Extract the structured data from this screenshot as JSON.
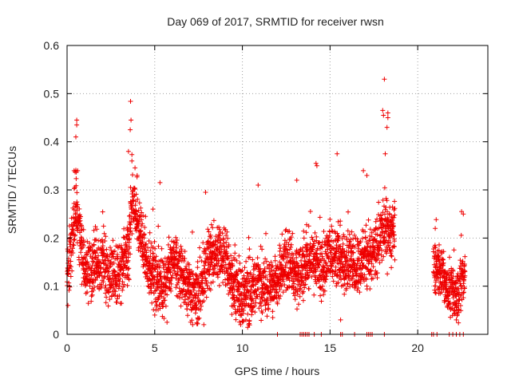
{
  "chart_data": {
    "type": "scatter",
    "title": "Day 069 of 2017, SRMTID for receiver rwsn",
    "xlabel": "GPS time / hours",
    "ylabel": "SRMTID / TECUs",
    "xlim": [
      0,
      24
    ],
    "ylim": [
      0,
      0.6
    ],
    "x_ticks": [
      0,
      5,
      10,
      15,
      20
    ],
    "y_ticks": [
      0,
      0.1,
      0.2,
      0.3,
      0.4,
      0.5,
      0.6
    ],
    "x_tick_labels": [
      "0",
      "5",
      "10",
      "15",
      "20"
    ],
    "y_tick_labels": [
      "0",
      "0.1",
      "0.2",
      "0.3",
      "0.4",
      "0.5",
      "0.6"
    ],
    "grid": true,
    "marker": "plus",
    "color": "#ee0000",
    "series": [
      {
        "name": "SRMTID",
        "segments": [
          {
            "x_start": 0.0,
            "x_end": 18.7,
            "x_step": 0.016,
            "anchors_x": [
              0.0,
              0.3,
              0.5,
              0.6,
              1.0,
              1.5,
              2.0,
              2.5,
              3.0,
              3.5,
              3.7,
              4.0,
              4.5,
              5.0,
              5.5,
              6.0,
              6.5,
              7.0,
              7.5,
              8.0,
              8.5,
              9.0,
              9.5,
              10.0,
              10.5,
              11.0,
              11.5,
              12.0,
              12.5,
              13.0,
              13.5,
              14.0,
              14.5,
              15.0,
              15.5,
              16.0,
              16.5,
              17.0,
              17.5,
              18.0,
              18.3,
              18.7
            ],
            "anchors_y": [
              0.12,
              0.2,
              0.27,
              0.25,
              0.13,
              0.14,
              0.15,
              0.12,
              0.13,
              0.17,
              0.28,
              0.24,
              0.16,
              0.12,
              0.1,
              0.15,
              0.13,
              0.09,
              0.07,
              0.16,
              0.17,
              0.16,
              0.1,
              0.08,
              0.09,
              0.11,
              0.1,
              0.11,
              0.15,
              0.12,
              0.14,
              0.16,
              0.13,
              0.17,
              0.16,
              0.15,
              0.14,
              0.17,
              0.16,
              0.22,
              0.21,
              0.2
            ],
            "spread": 0.07
          },
          {
            "x_start": 20.9,
            "x_end": 22.7,
            "x_step": 0.016,
            "anchors_x": [
              20.9,
              21.3,
              21.7,
              22.2,
              22.7
            ],
            "anchors_y": [
              0.15,
              0.13,
              0.1,
              0.08,
              0.12
            ],
            "spread": 0.06
          }
        ],
        "outliers": [
          [
            18.1,
            0.53
          ],
          [
            3.62,
            0.484
          ],
          [
            3.65,
            0.445
          ],
          [
            3.6,
            0.425
          ],
          [
            0.55,
            0.445
          ],
          [
            0.55,
            0.435
          ],
          [
            0.5,
            0.41
          ],
          [
            18.0,
            0.465
          ],
          [
            18.05,
            0.455
          ],
          [
            18.3,
            0.46
          ],
          [
            18.3,
            0.45
          ],
          [
            18.25,
            0.43
          ],
          [
            18.15,
            0.375
          ],
          [
            15.4,
            0.375
          ],
          [
            14.2,
            0.355
          ],
          [
            14.25,
            0.35
          ],
          [
            13.1,
            0.32
          ],
          [
            10.9,
            0.31
          ],
          [
            5.3,
            0.315
          ],
          [
            7.9,
            0.295
          ],
          [
            0.4,
            0.34
          ],
          [
            0.6,
            0.34
          ],
          [
            3.5,
            0.38
          ],
          [
            3.7,
            0.36
          ],
          [
            4.0,
            0.33
          ],
          [
            16.9,
            0.34
          ],
          [
            17.1,
            0.33
          ],
          [
            22.5,
            0.255
          ],
          [
            22.6,
            0.25
          ],
          [
            21.0,
            0.22
          ],
          [
            0.05,
            0.06
          ],
          [
            5.0,
            0.04
          ],
          [
            5.7,
            0.025
          ],
          [
            7.8,
            0.02
          ],
          [
            9.9,
            0.02
          ],
          [
            10.2,
            0.03
          ],
          [
            15.6,
            0.03
          ],
          [
            22.2,
            0.03
          ],
          [
            4.9,
            0.26
          ]
        ],
        "zero_x": [
          12.0,
          13.3,
          13.4,
          13.5,
          13.6,
          13.7,
          13.8,
          14.1,
          14.5,
          15.6,
          15.7,
          16.4,
          17.1,
          17.2,
          17.3,
          17.4,
          18.1,
          20.8,
          20.9,
          21.1,
          21.8,
          22.0,
          22.2,
          22.4,
          22.6
        ]
      }
    ]
  }
}
